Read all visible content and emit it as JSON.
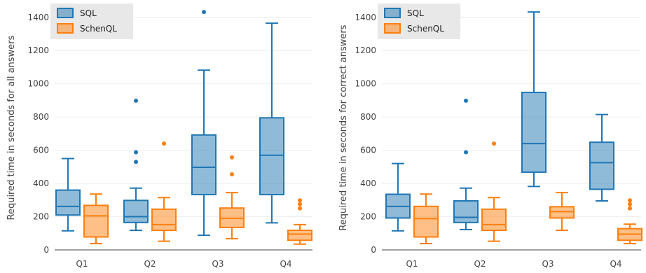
{
  "colors": {
    "sql": "#1f77b4",
    "schenql": "#ff7f0e",
    "grid": "#eeeeee",
    "legend_bg": "#e8e8e8"
  },
  "chart_data": [
    {
      "type": "box",
      "ylabel": "Required time in seconds for all answers",
      "categories": [
        "Q1",
        "Q2",
        "Q3",
        "Q4"
      ],
      "ylim": [
        -30,
        1500
      ],
      "yticks": [
        0,
        200,
        400,
        600,
        800,
        1000,
        1200,
        1400
      ],
      "grid": true,
      "legend": "top-left",
      "series": [
        {
          "name": "SQL",
          "boxes": [
            {
              "min": 115,
              "q1": 210,
              "median": 262,
              "q3": 360,
              "max": 550,
              "outliers": []
            },
            {
              "min": 118,
              "q1": 165,
              "median": 200,
              "q3": 298,
              "max": 372,
              "outliers": [
                530,
                588,
                898
              ]
            },
            {
              "min": 88,
              "q1": 333,
              "median": 497,
              "q3": 692,
              "max": 1082,
              "outliers": [
                1432
              ]
            },
            {
              "min": 163,
              "q1": 333,
              "median": 570,
              "q3": 795,
              "max": 1365,
              "outliers": []
            }
          ]
        },
        {
          "name": "SchenQL",
          "boxes": [
            {
              "min": 38,
              "q1": 78,
              "median": 205,
              "q3": 268,
              "max": 336,
              "outliers": []
            },
            {
              "min": 52,
              "q1": 118,
              "median": 152,
              "q3": 245,
              "max": 315,
              "outliers": [
                640
              ]
            },
            {
              "min": 68,
              "q1": 135,
              "median": 190,
              "q3": 252,
              "max": 345,
              "outliers": [
                455,
                557
              ]
            },
            {
              "min": 35,
              "q1": 58,
              "median": 95,
              "q3": 118,
              "max": 152,
              "outliers": [
                250,
                275,
                298
              ]
            }
          ]
        }
      ]
    },
    {
      "type": "box",
      "ylabel": "Required time in seconds for correct answers",
      "categories": [
        "Q1",
        "Q2",
        "Q3",
        "Q4"
      ],
      "ylim": [
        -30,
        1500
      ],
      "yticks": [
        0,
        200,
        400,
        600,
        800,
        1000,
        1200,
        1400
      ],
      "grid": true,
      "legend": "top-left",
      "series": [
        {
          "name": "SQL",
          "boxes": [
            {
              "min": 115,
              "q1": 192,
              "median": 262,
              "q3": 335,
              "max": 520,
              "outliers": []
            },
            {
              "min": 122,
              "q1": 165,
              "median": 196,
              "q3": 295,
              "max": 372,
              "outliers": [
                588,
                898
              ]
            },
            {
              "min": 382,
              "q1": 468,
              "median": 640,
              "q3": 948,
              "max": 1432,
              "outliers": []
            },
            {
              "min": 295,
              "q1": 365,
              "median": 525,
              "q3": 648,
              "max": 815,
              "outliers": []
            }
          ]
        },
        {
          "name": "SchenQL",
          "boxes": [
            {
              "min": 38,
              "q1": 78,
              "median": 188,
              "q3": 262,
              "max": 336,
              "outliers": []
            },
            {
              "min": 52,
              "q1": 118,
              "median": 152,
              "q3": 245,
              "max": 315,
              "outliers": [
                640
              ]
            },
            {
              "min": 118,
              "q1": 192,
              "median": 230,
              "q3": 260,
              "max": 345,
              "outliers": []
            },
            {
              "min": 38,
              "q1": 58,
              "median": 95,
              "q3": 128,
              "max": 155,
              "outliers": [
                250,
                275,
                298
              ]
            }
          ]
        }
      ]
    }
  ]
}
